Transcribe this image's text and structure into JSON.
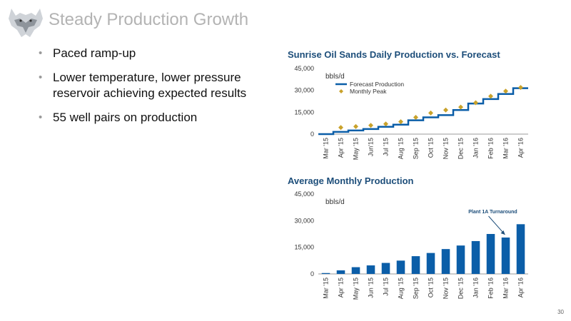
{
  "slide": {
    "title": "Steady Production Growth",
    "bullets": [
      "Paced ramp-up",
      "Lower temperature, lower pressure reservoir achieving expected results",
      "55 well pairs on production"
    ],
    "page_number": "30",
    "logo_icon": "husky-head-icon"
  },
  "colors": {
    "series": "#0b5ea8",
    "marker": "#c9a22b",
    "title_gray": "#b3b3b3",
    "chart_title": "#1d4e7a"
  },
  "chart_data": [
    {
      "type": "line",
      "title": "Sunrise Oil Sands Daily Production vs. Forecast",
      "unit_label": "bbls/d",
      "categories": [
        "Mar '15",
        "Apr '15",
        "May '15",
        "Jun'15",
        "Jul '15",
        "Aug '15",
        "Sep '15",
        "Oct '15",
        "Nov '15",
        "Dec '15",
        "Jan '16",
        "Feb '16",
        "Mar '16",
        "Apr '16"
      ],
      "ylim": [
        0,
        45000
      ],
      "yticks": [
        "0",
        "15,000",
        "30,000",
        "45,000"
      ],
      "legend": "top-left",
      "series": [
        {
          "name": "Forecast Production",
          "style": "step",
          "values": [
            0,
            1500,
            2500,
            3500,
            5000,
            6500,
            9500,
            11500,
            13000,
            16500,
            21000,
            24000,
            27500,
            31500
          ]
        },
        {
          "name": "Monthly Peak",
          "style": "markers",
          "values": [
            null,
            4500,
            5200,
            6000,
            7000,
            8500,
            11500,
            14500,
            16500,
            18500,
            21500,
            26000,
            29500,
            32000
          ]
        }
      ]
    },
    {
      "type": "bar",
      "title": "Average Monthly Production",
      "unit_label": "bbls/d",
      "categories": [
        "Mar '15",
        "Apr '15",
        "May '15",
        "Jun '15",
        "Jul '15",
        "Aug '15",
        "Sep '15",
        "Oct '15",
        "Nov '15",
        "Dec '15",
        "Jan '16",
        "Feb '16",
        "Mar '16",
        "Apr '16"
      ],
      "ylim": [
        0,
        45000
      ],
      "yticks": [
        "0",
        "15,000",
        "30,000",
        "45,000"
      ],
      "values": [
        500,
        2000,
        3800,
        4800,
        6200,
        7500,
        10000,
        11800,
        14000,
        16000,
        18500,
        22500,
        20500,
        28000
      ],
      "annotation": {
        "text": "Plant 1A Turnaround",
        "target_index": 12
      }
    }
  ]
}
